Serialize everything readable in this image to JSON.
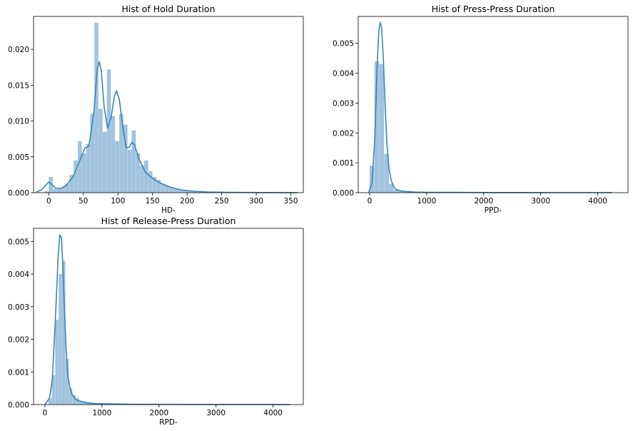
{
  "chart_data": [
    {
      "type": "bar",
      "title": "Hist of Hold Duration",
      "xlabel": "HD-",
      "ylabel": "",
      "xlim": [
        -22,
        368
      ],
      "ylim": [
        0,
        0.0246
      ],
      "xticks": [
        0,
        50,
        100,
        150,
        200,
        250,
        300,
        350
      ],
      "yticks": [
        0.0,
        0.005,
        0.01,
        0.015,
        0.02
      ],
      "ytick_labels": [
        "0.000",
        "0.005",
        "0.010",
        "0.015",
        "0.020"
      ],
      "bin_edges": [
        -6,
        0,
        6,
        12,
        18,
        24,
        30,
        36,
        42,
        48,
        54,
        60,
        66,
        72,
        78,
        84,
        90,
        96,
        102,
        108,
        114,
        120,
        126,
        132,
        138,
        144,
        150,
        156,
        162,
        168,
        174,
        180,
        186,
        192,
        198,
        204,
        210,
        216,
        222,
        228,
        234,
        240,
        246,
        252,
        258,
        264,
        270,
        276,
        282,
        288,
        294,
        300,
        306,
        312,
        318,
        324,
        330,
        336,
        342,
        348,
        354,
        360
      ],
      "values": [
        0.0002,
        0.0022,
        0.0005,
        0.0005,
        0.0008,
        0.0012,
        0.0025,
        0.0045,
        0.0072,
        0.0055,
        0.0068,
        0.011,
        0.0237,
        0.0117,
        0.0085,
        0.0172,
        0.0107,
        0.0072,
        0.011,
        0.0095,
        0.006,
        0.0087,
        0.0055,
        0.0038,
        0.0045,
        0.003,
        0.0022,
        0.0018,
        0.0012,
        0.001,
        0.0007,
        0.0005,
        0.0004,
        0.0003,
        0.0002,
        0.0002,
        0.0001,
        0.0001,
        0.0001,
        0.0001,
        0.0001,
        0.0001,
        0.0001,
        0.0001,
        5e-05,
        5e-05,
        5e-05,
        5e-05,
        5e-05,
        5e-05,
        5e-05,
        5e-05,
        5e-05,
        5e-05,
        5e-05,
        5e-05,
        5e-05,
        5e-05,
        5e-05,
        5e-05,
        5e-05
      ],
      "kde_x": [
        -18,
        -10,
        -5,
        0,
        5,
        10,
        18,
        25,
        35,
        45,
        52,
        58,
        65,
        70,
        73,
        76,
        80,
        85,
        90,
        95,
        98,
        102,
        108,
        112,
        116,
        120,
        124,
        130,
        140,
        150,
        160,
        175,
        190,
        210,
        230,
        260,
        300,
        340,
        360
      ],
      "kde_y": [
        0.0001,
        0.0004,
        0.001,
        0.0015,
        0.0011,
        0.0006,
        0.0006,
        0.001,
        0.0022,
        0.0045,
        0.0062,
        0.0065,
        0.011,
        0.0172,
        0.0183,
        0.017,
        0.012,
        0.009,
        0.0105,
        0.0135,
        0.0142,
        0.013,
        0.0085,
        0.0063,
        0.0063,
        0.007,
        0.0067,
        0.0048,
        0.0028,
        0.002,
        0.0014,
        0.0008,
        0.0004,
        0.0002,
        0.0001,
        5e-05,
        2e-05,
        1e-05,
        1e-05
      ]
    },
    {
      "type": "bar",
      "title": "Hist of Press-Press Duration",
      "xlabel": "PPD-",
      "ylabel": "",
      "xlim": [
        -200,
        4530
      ],
      "ylim": [
        0,
        0.0059
      ],
      "xticks": [
        0,
        1000,
        2000,
        3000,
        4000
      ],
      "yticks": [
        0.0,
        0.001,
        0.002,
        0.003,
        0.004,
        0.005
      ],
      "ytick_labels": [
        "0.000",
        "0.001",
        "0.002",
        "0.003",
        "0.004",
        "0.005"
      ],
      "bin_edges": [
        0,
        85,
        170,
        255,
        340,
        425,
        510,
        595,
        680,
        765,
        850,
        935,
        1020,
        1105,
        1190,
        1275,
        1360,
        1445,
        1530,
        1615,
        1700,
        1785,
        1870,
        1955,
        2040,
        2125,
        2210,
        2295,
        2380,
        2465,
        2550,
        2635,
        2720,
        2805,
        2890,
        2975,
        3060,
        3145,
        3230,
        3315,
        3400,
        3485,
        3570,
        3655,
        3740,
        3825,
        3910,
        3995,
        4080,
        4165,
        4250
      ],
      "values": [
        0.0009,
        0.0044,
        0.0043,
        0.0013,
        0.0003,
        0.0001,
        5e-05,
        4e-05,
        3e-05,
        2e-05,
        2e-05,
        1e-05,
        1e-05,
        1e-05,
        1e-05,
        1e-05,
        1e-05,
        1e-05,
        1e-05,
        1e-05,
        1e-05,
        1e-05,
        1e-05,
        1e-05,
        1e-05,
        1e-05,
        1e-05,
        1e-05,
        1e-05,
        1e-05,
        1e-05,
        1e-05,
        1e-05,
        1e-05,
        1e-05,
        1e-05,
        1e-05,
        1e-05,
        1e-05,
        1e-05,
        1e-05,
        1e-05,
        1e-05,
        1e-05,
        1e-05,
        1e-05,
        1e-05,
        1e-05,
        1e-05,
        1e-05
      ],
      "kde_x": [
        -20,
        40,
        90,
        130,
        160,
        185,
        210,
        240,
        270,
        300,
        340,
        380,
        420,
        470,
        540,
        640,
        800,
        1000,
        1400,
        2000,
        2600,
        3200,
        3800,
        4250
      ],
      "kde_y": [
        0.0,
        0.0003,
        0.0018,
        0.0042,
        0.0054,
        0.0057,
        0.0055,
        0.0045,
        0.003,
        0.0017,
        0.0008,
        0.0004,
        0.0002,
        0.0001,
        6e-05,
        4e-05,
        2e-05,
        1e-05,
        1e-05,
        5e-06,
        5e-06,
        3e-06,
        3e-06,
        2e-06
      ]
    },
    {
      "type": "bar",
      "title": "Hist of Release-Press Duration",
      "xlabel": "RPD-",
      "ylabel": "",
      "xlim": [
        -200,
        4530
      ],
      "ylim": [
        0,
        0.0054
      ],
      "xticks": [
        0,
        1000,
        2000,
        3000,
        4000
      ],
      "yticks": [
        0.0,
        0.001,
        0.002,
        0.003,
        0.004,
        0.005
      ],
      "ytick_labels": [
        "0.000",
        "0.001",
        "0.002",
        "0.003",
        "0.004",
        "0.005"
      ],
      "bin_edges": [
        60,
        120,
        180,
        240,
        300,
        360,
        420,
        480,
        540,
        600,
        660,
        720,
        780,
        840,
        900,
        960,
        1020,
        1080,
        1140,
        1200,
        1260,
        1320,
        1380,
        1440,
        1500,
        1560,
        1620,
        1680,
        1740,
        1800,
        1860,
        1920,
        1980,
        2040,
        2100,
        2160,
        2220,
        2280,
        2340,
        2400,
        2460,
        2520,
        2580,
        2640,
        2700,
        2760,
        2820,
        2880,
        2940,
        3000,
        3060,
        3120,
        3180,
        3240,
        3300,
        3360,
        3420,
        3480,
        3540,
        3600,
        3660,
        3720,
        3780,
        3840,
        3900,
        3960,
        4020,
        4080,
        4140,
        4200,
        4260
      ],
      "values": [
        0.0002,
        0.0009,
        0.0026,
        0.004,
        0.0044,
        0.0014,
        0.0005,
        0.0003,
        0.0002,
        0.00012,
        0.0001,
        8e-05,
        6e-05,
        5e-05,
        4e-05,
        3e-05,
        3e-05,
        2e-05,
        2e-05,
        2e-05,
        1e-05,
        1e-05,
        1e-05,
        1e-05,
        1e-05,
        1e-05,
        1e-05,
        1e-05,
        1e-05,
        1e-05,
        1e-05,
        1e-05,
        1e-05,
        1e-05,
        1e-05,
        1e-05,
        1e-05,
        1e-05,
        1e-05,
        1e-05,
        1e-05,
        1e-05,
        1e-05,
        1e-05,
        1e-05,
        1e-05,
        1e-05,
        1e-05,
        1e-05,
        1e-05,
        1e-05,
        1e-05,
        1e-05,
        1e-05,
        1e-05,
        1e-05,
        1e-05,
        1e-05,
        1e-05,
        1e-05,
        1e-05,
        1e-05,
        1e-05,
        1e-05,
        1e-05,
        1e-05,
        1e-05,
        1e-05,
        1e-05,
        1e-05
      ],
      "kde_x": [
        0,
        80,
        130,
        180,
        230,
        260,
        290,
        310,
        340,
        370,
        400,
        440,
        480,
        540,
        620,
        750,
        900,
        1200,
        1600,
        2200,
        2800,
        3400,
        4000,
        4300
      ],
      "kde_y": [
        0.0,
        0.0002,
        0.0008,
        0.0025,
        0.0045,
        0.0052,
        0.0051,
        0.0044,
        0.003,
        0.0017,
        0.0009,
        0.0005,
        0.0003,
        0.00015,
        0.0001,
        5e-05,
        3e-05,
        2e-05,
        1e-05,
        8e-06,
        5e-06,
        4e-06,
        3e-06,
        2e-06
      ]
    }
  ]
}
